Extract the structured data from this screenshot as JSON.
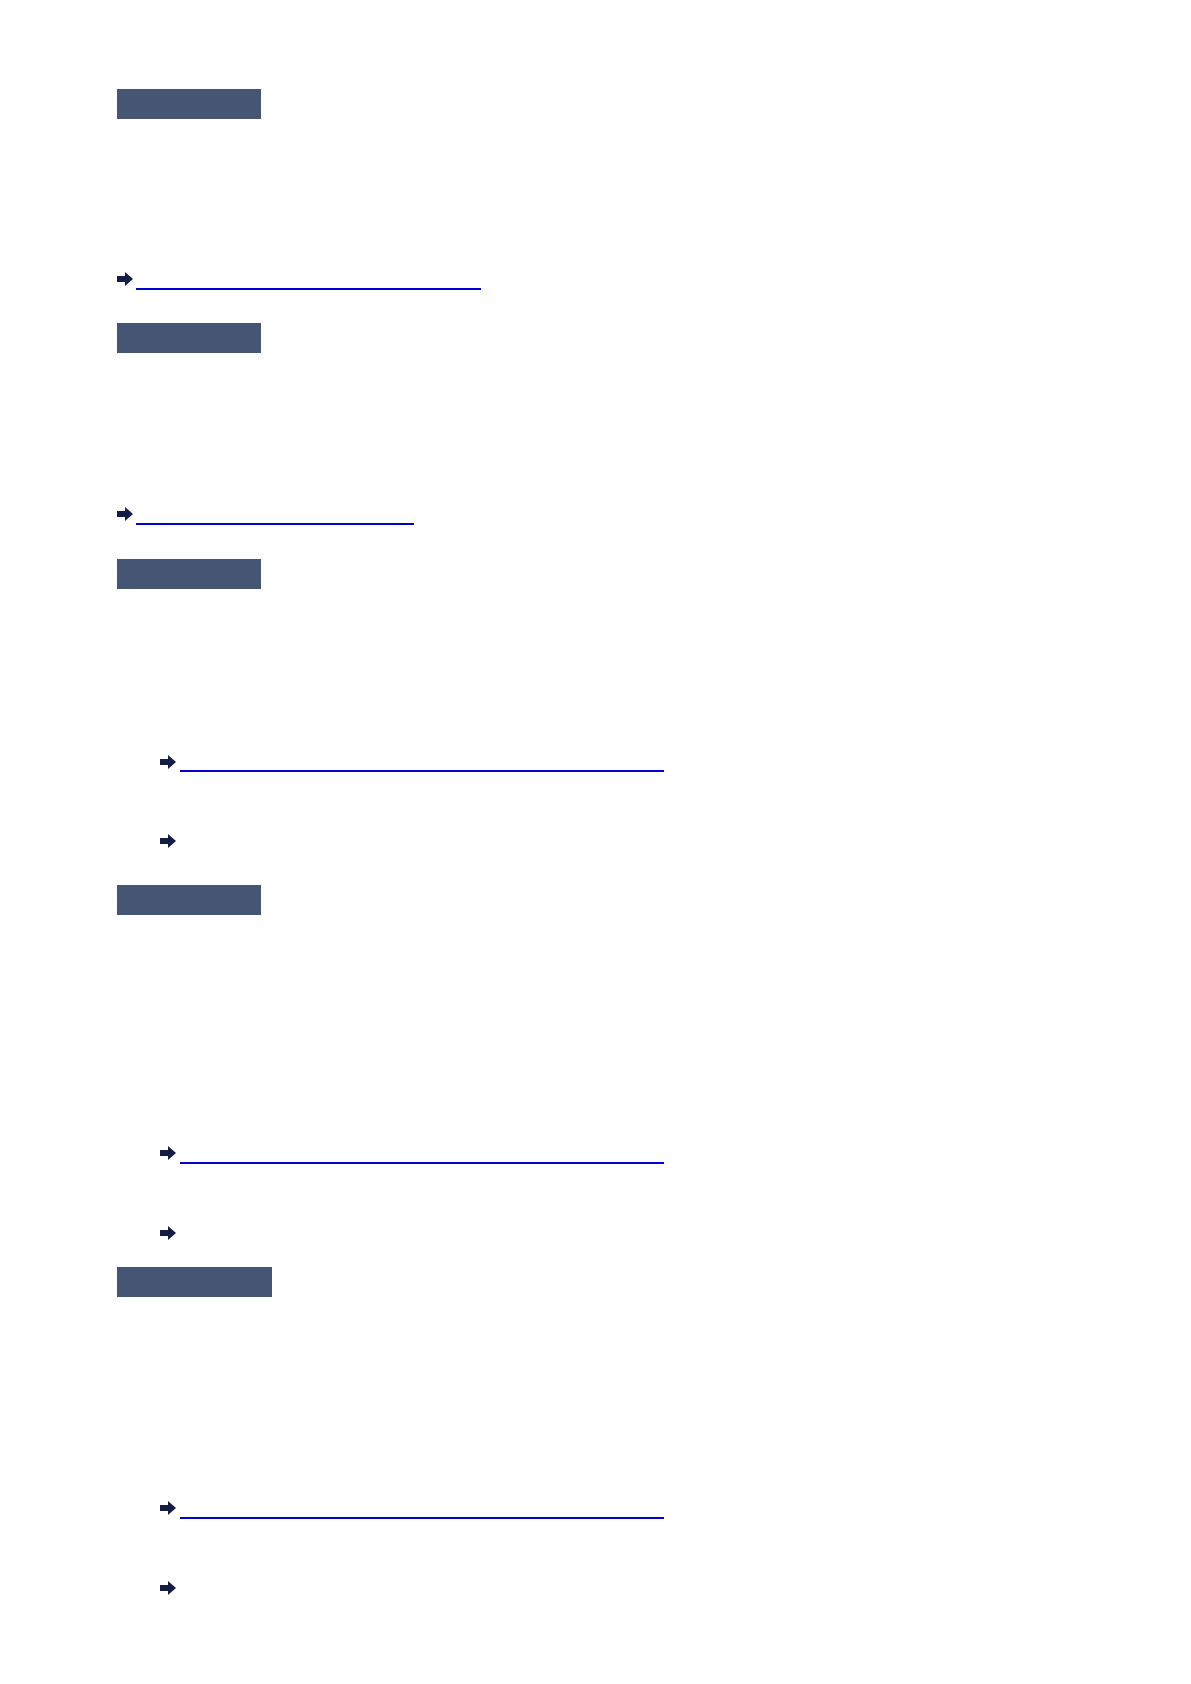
{
  "colors": {
    "heading_bar": "#455675",
    "arrow": "#131d45",
    "link_underline": "#0000cc",
    "background": "#ffffff"
  },
  "icons": {
    "link_arrow": "right-arrow-icon"
  },
  "sections": [
    {
      "links": [
        {
          "indented": false
        }
      ]
    },
    {
      "links": [
        {
          "indented": false
        }
      ]
    },
    {
      "links": [
        {
          "indented": true
        },
        {
          "indented": true
        }
      ]
    },
    {
      "links": [
        {
          "indented": true
        },
        {
          "indented": true
        }
      ]
    },
    {
      "links": [
        {
          "indented": true
        },
        {
          "indented": true
        }
      ]
    }
  ]
}
